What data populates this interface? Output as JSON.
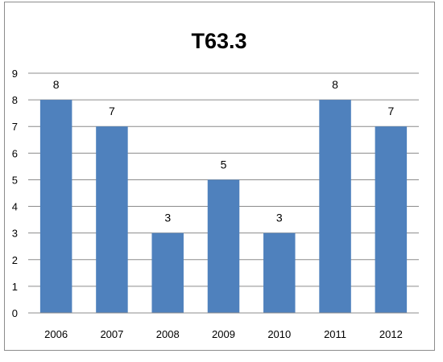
{
  "chart_data": {
    "type": "bar",
    "title": "T63.3",
    "categories": [
      "2006",
      "2007",
      "2008",
      "2009",
      "2010",
      "2011",
      "2012"
    ],
    "values": [
      8,
      7,
      3,
      5,
      3,
      8,
      7
    ],
    "data_labels": [
      "8",
      "7",
      "3",
      "5",
      "3",
      "8",
      "7"
    ],
    "ylim": [
      0,
      9
    ],
    "yticks": [
      "0",
      "1",
      "2",
      "3",
      "4",
      "5",
      "6",
      "7",
      "8",
      "9"
    ],
    "xlabel": "",
    "ylabel": "",
    "grid": true,
    "legend": "none",
    "bar_color": "#4f81bd"
  }
}
